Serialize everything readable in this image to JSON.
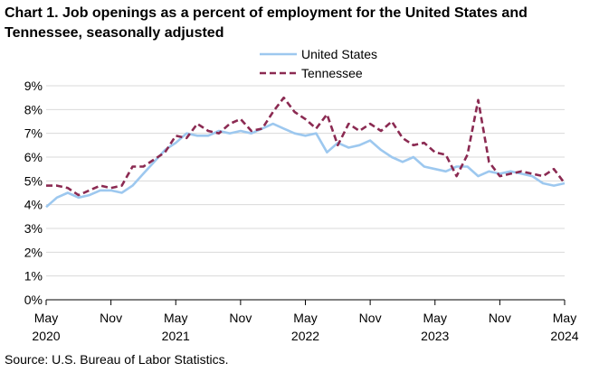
{
  "title": "Chart 1. Job openings as a percent of employment for the United States and Tennessee, seasonally adjusted",
  "source": "Source: U.S. Bureau of Labor Statistics.",
  "chart_data": {
    "type": "line",
    "title": "Chart 1. Job openings as a percent of employment for the United States and Tennessee, seasonally adjusted",
    "xlabel": "",
    "ylabel": "",
    "ylim": [
      0,
      9
    ],
    "yticks": [
      "0%",
      "1%",
      "2%",
      "3%",
      "4%",
      "5%",
      "6%",
      "7%",
      "8%",
      "9%"
    ],
    "xticks": [
      {
        "month": "May",
        "year": "2020",
        "index": 0
      },
      {
        "month": "Nov",
        "year": "",
        "index": 6
      },
      {
        "month": "May",
        "year": "2021",
        "index": 12
      },
      {
        "month": "Nov",
        "year": "",
        "index": 18
      },
      {
        "month": "May",
        "year": "2022",
        "index": 24
      },
      {
        "month": "Nov",
        "year": "",
        "index": 30
      },
      {
        "month": "May",
        "year": "2023",
        "index": 36
      },
      {
        "month": "Nov",
        "year": "",
        "index": 42
      },
      {
        "month": "May",
        "year": "2024",
        "index": 48
      }
    ],
    "grid": true,
    "legend_position": "top-right",
    "x": [
      "2020-05",
      "2020-06",
      "2020-07",
      "2020-08",
      "2020-09",
      "2020-10",
      "2020-11",
      "2020-12",
      "2021-01",
      "2021-02",
      "2021-03",
      "2021-04",
      "2021-05",
      "2021-06",
      "2021-07",
      "2021-08",
      "2021-09",
      "2021-10",
      "2021-11",
      "2021-12",
      "2022-01",
      "2022-02",
      "2022-03",
      "2022-04",
      "2022-05",
      "2022-06",
      "2022-07",
      "2022-08",
      "2022-09",
      "2022-10",
      "2022-11",
      "2022-12",
      "2023-01",
      "2023-02",
      "2023-03",
      "2023-04",
      "2023-05",
      "2023-06",
      "2023-07",
      "2023-08",
      "2023-09",
      "2023-10",
      "2023-11",
      "2023-12",
      "2024-01",
      "2024-02",
      "2024-03",
      "2024-04",
      "2024-05"
    ],
    "series": [
      {
        "name": "United States",
        "color": "#9dc8ef",
        "style": "solid",
        "values": [
          3.9,
          4.3,
          4.5,
          4.3,
          4.4,
          4.6,
          4.6,
          4.5,
          4.8,
          5.3,
          5.8,
          6.3,
          6.6,
          7.0,
          6.9,
          6.9,
          7.1,
          7.0,
          7.1,
          7.0,
          7.2,
          7.4,
          7.2,
          7.0,
          6.9,
          7.0,
          6.2,
          6.6,
          6.4,
          6.5,
          6.7,
          6.3,
          6.0,
          5.8,
          6.0,
          5.6,
          5.5,
          5.4,
          5.6,
          5.6,
          5.2,
          5.4,
          5.3,
          5.4,
          5.3,
          5.2,
          4.9,
          4.8,
          4.9
        ]
      },
      {
        "name": "Tennessee",
        "color": "#8b2a52",
        "style": "dashed",
        "values": [
          4.8,
          4.8,
          4.7,
          4.4,
          4.6,
          4.8,
          4.7,
          4.8,
          5.6,
          5.6,
          5.9,
          6.2,
          6.9,
          6.8,
          7.4,
          7.1,
          7.0,
          7.4,
          7.6,
          7.1,
          7.2,
          7.9,
          8.5,
          7.9,
          7.6,
          7.2,
          7.8,
          6.5,
          7.4,
          7.1,
          7.4,
          7.1,
          7.5,
          6.8,
          6.5,
          6.6,
          6.2,
          6.1,
          5.2,
          6.1,
          8.4,
          5.8,
          5.2,
          5.3,
          5.4,
          5.3,
          5.2,
          5.5,
          4.9
        ]
      }
    ]
  }
}
